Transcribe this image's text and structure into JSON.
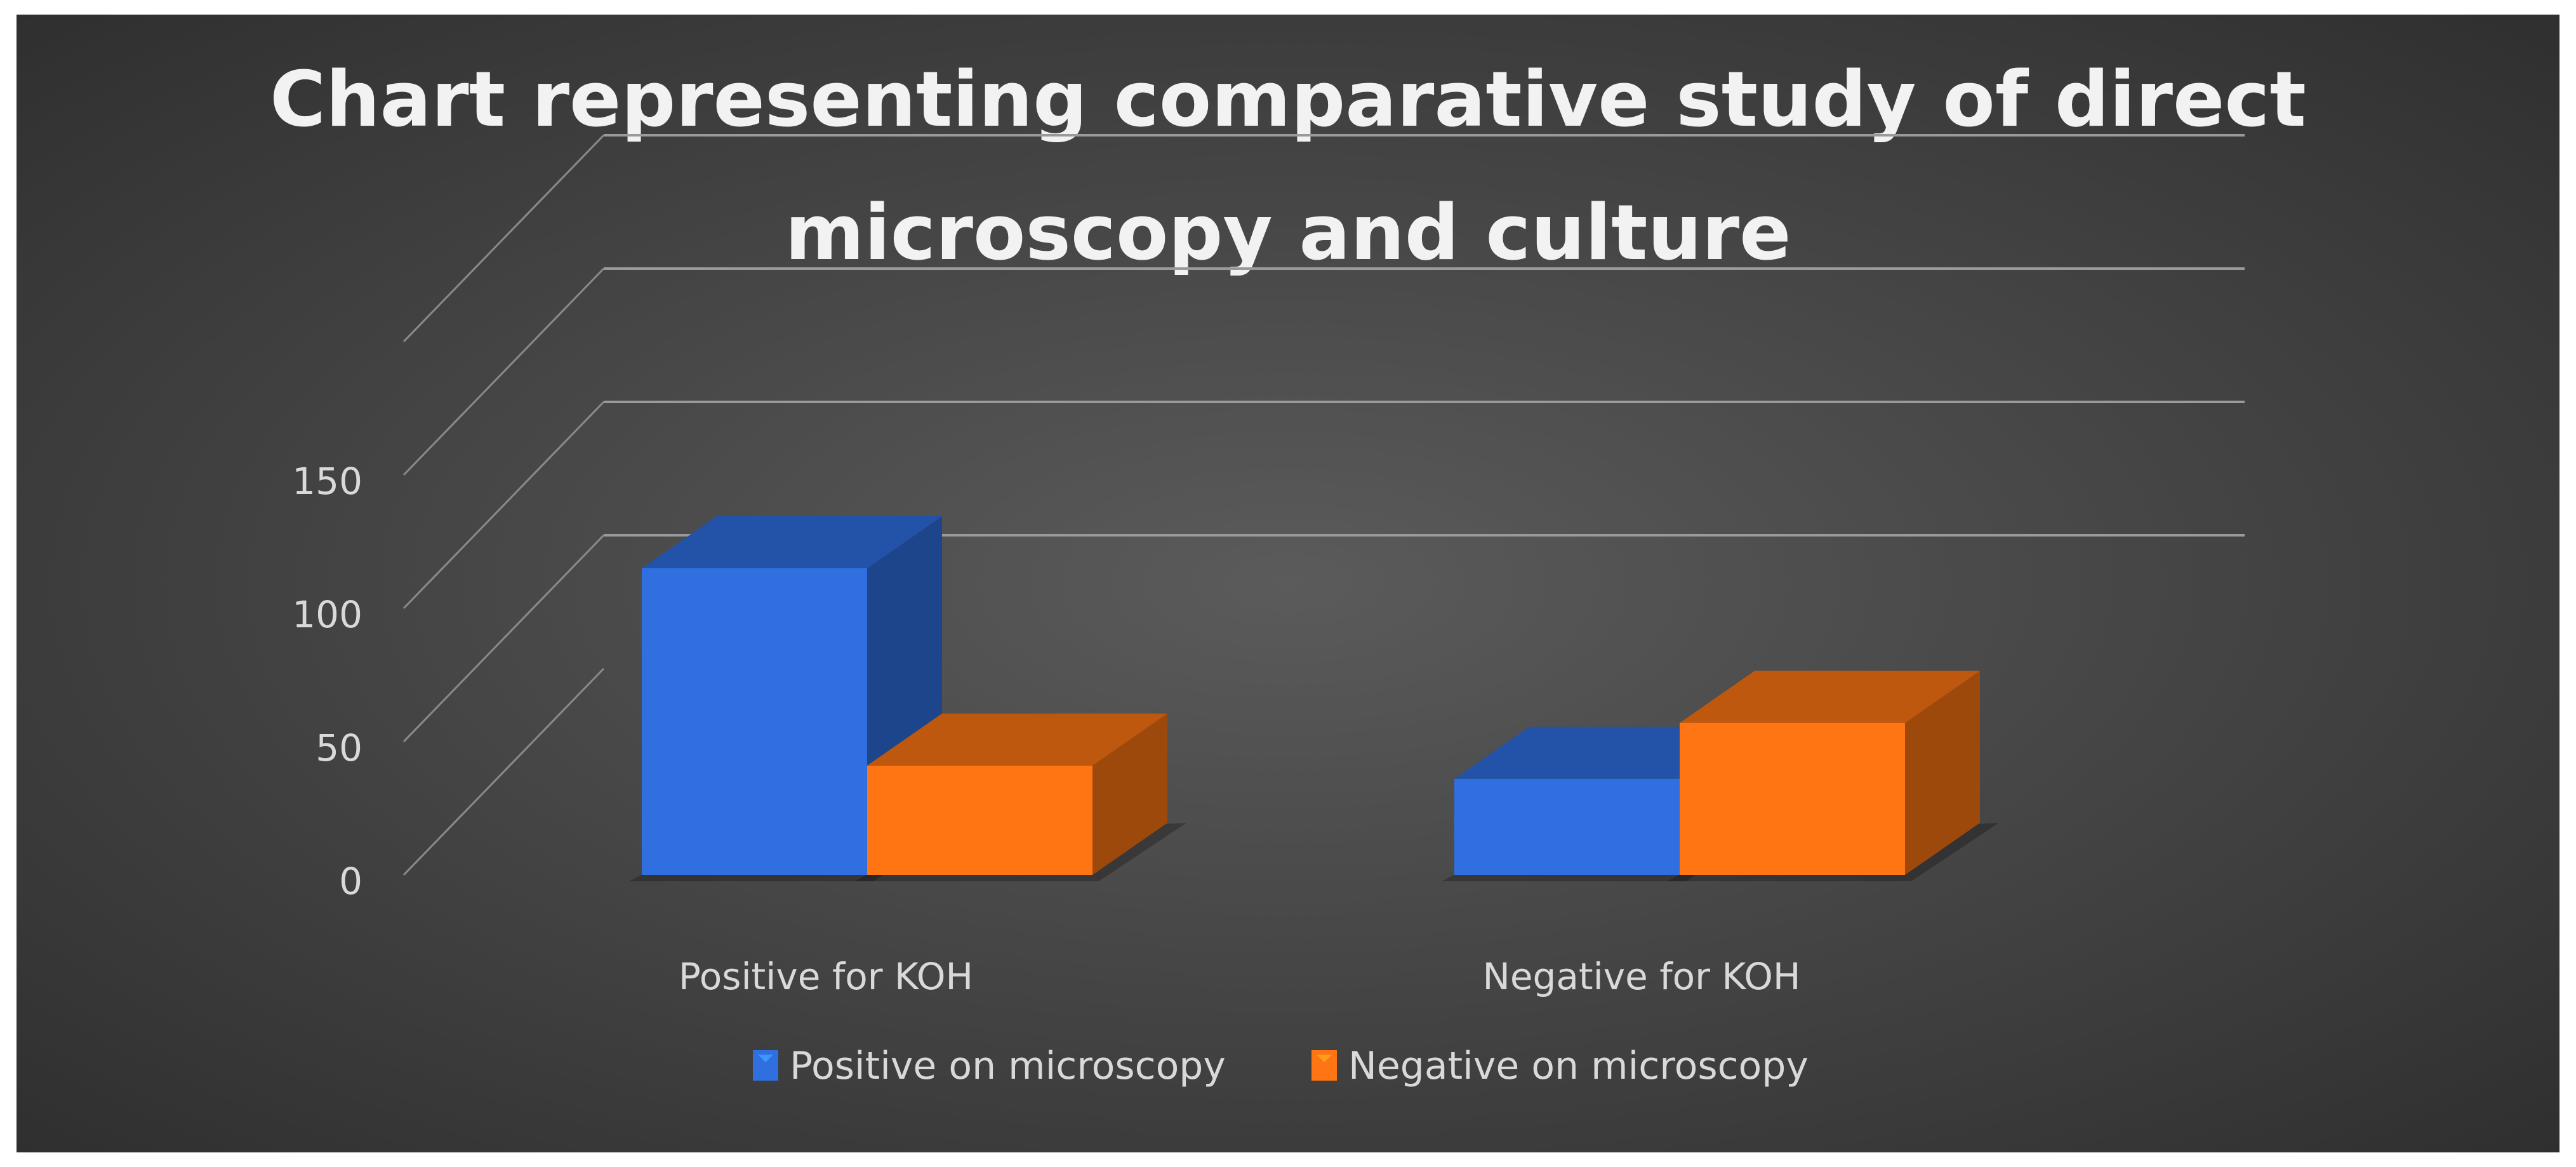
{
  "chart_data": {
    "type": "bar",
    "title_lines": [
      "Chart representing comparative study of direct",
      "microscopy and culture"
    ],
    "categories": [
      "Positive for KOH",
      "Negative for KOH"
    ],
    "series": [
      {
        "name": "Positive on microscopy",
        "values": [
          115,
          36
        ],
        "color": "#2f6fe0"
      },
      {
        "name": "Negative on microscopy",
        "values": [
          41,
          57
        ],
        "color": "#ff7514"
      }
    ],
    "yticks": [
      "0",
      "50",
      "100",
      "150"
    ],
    "ylim": [
      0,
      150
    ],
    "grid": true,
    "three_d": true,
    "legend_position": "bottom"
  }
}
